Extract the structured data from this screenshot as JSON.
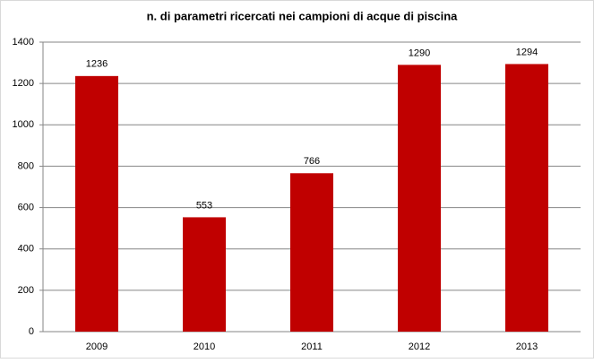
{
  "chart_data": {
    "type": "bar",
    "title": "n. di parametri ricercati nei campioni di acque di piscina",
    "categories": [
      "2009",
      "2010",
      "2011",
      "2012",
      "2013"
    ],
    "values": [
      1236,
      553,
      766,
      1290,
      1294
    ],
    "color": "#c00000",
    "ylim": [
      0,
      1400
    ],
    "yticks": [
      0,
      200,
      400,
      600,
      800,
      1000,
      1200,
      1400
    ],
    "grid": true
  }
}
